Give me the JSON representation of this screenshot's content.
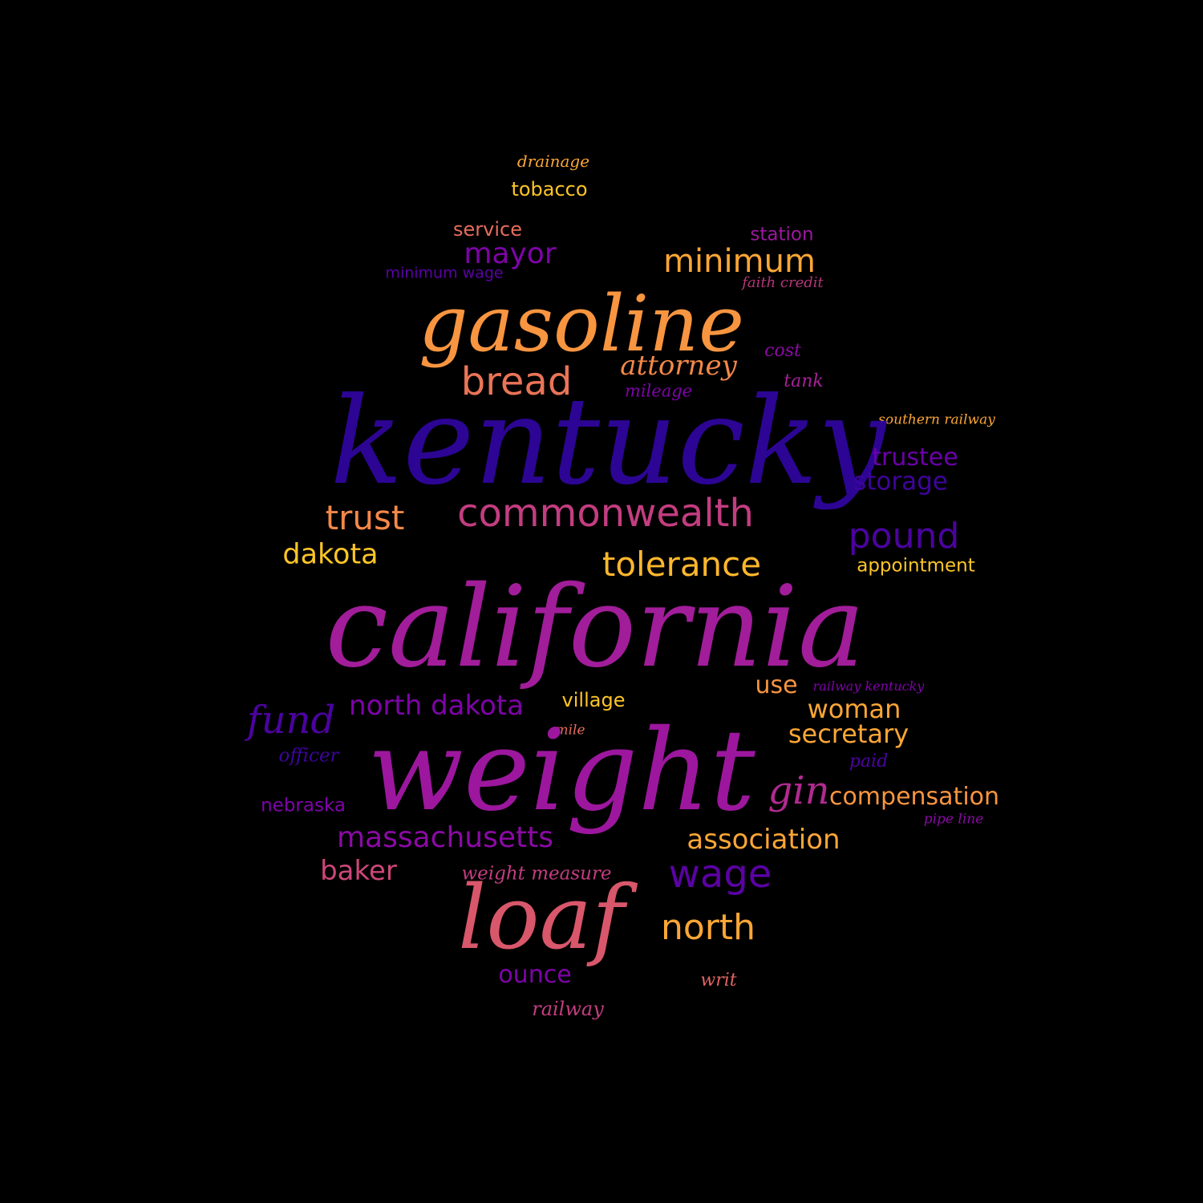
{
  "background": "#000000",
  "words": [
    {
      "text": "drainage",
      "color": "#fca636",
      "size": "small"
    },
    {
      "text": "tobacco",
      "color": "#fdc527",
      "size": "small"
    },
    {
      "text": "service",
      "color": "#e66c5c",
      "size": "small"
    },
    {
      "text": "station",
      "color": "#9c179e",
      "size": "small"
    },
    {
      "text": "mayor",
      "color": "#7e03a8",
      "size": "medium"
    },
    {
      "text": "minimum",
      "color": "#fca636",
      "size": "medium"
    },
    {
      "text": "minimum wage",
      "color": "#5b01a5",
      "size": "small"
    },
    {
      "text": "faith credit",
      "color": "#b5367a",
      "size": "small"
    },
    {
      "text": "gasoline",
      "color": "#f89540",
      "size": "large"
    },
    {
      "text": "cost",
      "color": "#8b0aa5",
      "size": "small"
    },
    {
      "text": "attorney",
      "color": "#f48849",
      "size": "medium"
    },
    {
      "text": "bread",
      "color": "#ea7457",
      "size": "medium"
    },
    {
      "text": "tank",
      "color": "#a62098",
      "size": "small"
    },
    {
      "text": "mileage",
      "color": "#7e03a8",
      "size": "small"
    },
    {
      "text": "southern railway",
      "color": "#fca636",
      "size": "small"
    },
    {
      "text": "kentucky",
      "color": "#2c0594",
      "size": "xlarge"
    },
    {
      "text": "trustee",
      "color": "#6a00a8",
      "size": "medium"
    },
    {
      "text": "storage",
      "color": "#3e049c",
      "size": "medium"
    },
    {
      "text": "trust",
      "color": "#f48849",
      "size": "medium"
    },
    {
      "text": "commonwealth",
      "color": "#c33d80",
      "size": "medium"
    },
    {
      "text": "pound",
      "color": "#4c02a1",
      "size": "medium"
    },
    {
      "text": "dakota",
      "color": "#fdc527",
      "size": "medium"
    },
    {
      "text": "tolerance",
      "color": "#feb72d",
      "size": "medium"
    },
    {
      "text": "appointment",
      "color": "#fdc527",
      "size": "small"
    },
    {
      "text": "california",
      "color": "#a21d9a",
      "size": "xlarge"
    },
    {
      "text": "use",
      "color": "#f89540",
      "size": "medium"
    },
    {
      "text": "railway kentucky",
      "color": "#7e03a8",
      "size": "small"
    },
    {
      "text": "fund",
      "color": "#4c02a1",
      "size": "medium"
    },
    {
      "text": "north dakota",
      "color": "#7e03a8",
      "size": "medium"
    },
    {
      "text": "village",
      "color": "#fdc527",
      "size": "small"
    },
    {
      "text": "woman",
      "color": "#fca636",
      "size": "medium"
    },
    {
      "text": "mile",
      "color": "#e66c5c",
      "size": "small"
    },
    {
      "text": "secretary",
      "color": "#fca636",
      "size": "medium"
    },
    {
      "text": "officer",
      "color": "#3e049c",
      "size": "small"
    },
    {
      "text": "weight",
      "color": "#9c179e",
      "size": "xlarge"
    },
    {
      "text": "paid",
      "color": "#4c02a1",
      "size": "small"
    },
    {
      "text": "gin",
      "color": "#b12a90",
      "size": "medium"
    },
    {
      "text": "compensation",
      "color": "#f89540",
      "size": "medium"
    },
    {
      "text": "nebraska",
      "color": "#7e03a8",
      "size": "small"
    },
    {
      "text": "pipe line",
      "color": "#8b0aa5",
      "size": "small"
    },
    {
      "text": "massachusetts",
      "color": "#8b0aa5",
      "size": "medium"
    },
    {
      "text": "association",
      "color": "#fca636",
      "size": "medium"
    },
    {
      "text": "baker",
      "color": "#cc4778",
      "size": "medium"
    },
    {
      "text": "weight measure",
      "color": "#c33d80",
      "size": "small"
    },
    {
      "text": "wage",
      "color": "#5b01a5",
      "size": "medium"
    },
    {
      "text": "loaf",
      "color": "#d8576b",
      "size": "large"
    },
    {
      "text": "north",
      "color": "#fca636",
      "size": "medium"
    },
    {
      "text": "ounce",
      "color": "#7e03a8",
      "size": "medium"
    },
    {
      "text": "writ",
      "color": "#e16462",
      "size": "small"
    },
    {
      "text": "railway",
      "color": "#c33d80",
      "size": "small"
    }
  ]
}
